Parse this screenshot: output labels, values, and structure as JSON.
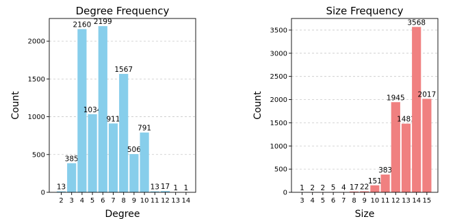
{
  "chart_data": [
    {
      "type": "bar",
      "title": "Degree Frequency",
      "xlabel": "Degree",
      "ylabel": "Count",
      "categories": [
        "2",
        "3",
        "4",
        "5",
        "6",
        "7",
        "8",
        "9",
        "10",
        "11",
        "12",
        "13",
        "14"
      ],
      "values": [
        13,
        385,
        2160,
        1034,
        2199,
        911,
        1567,
        506,
        791,
        13,
        17,
        1,
        1
      ],
      "ylim": [
        0,
        2300
      ],
      "yticks": [
        0,
        500,
        1000,
        1500,
        2000
      ],
      "bar_color": "#87ceeb",
      "grid": true
    },
    {
      "type": "bar",
      "title": "Size Frequency",
      "xlabel": "Size",
      "ylabel": "Count",
      "categories": [
        "3",
        "4",
        "5",
        "6",
        "7",
        "8",
        "9",
        "10",
        "11",
        "12",
        "13",
        "14",
        "15"
      ],
      "values": [
        1,
        2,
        2,
        5,
        4,
        17,
        22,
        151,
        383,
        1945,
        1481,
        3568,
        2017
      ],
      "ylim": [
        0,
        3750
      ],
      "yticks": [
        0,
        500,
        1000,
        1500,
        2000,
        2500,
        3000,
        3500
      ],
      "bar_color": "#f08080",
      "grid": true
    }
  ]
}
